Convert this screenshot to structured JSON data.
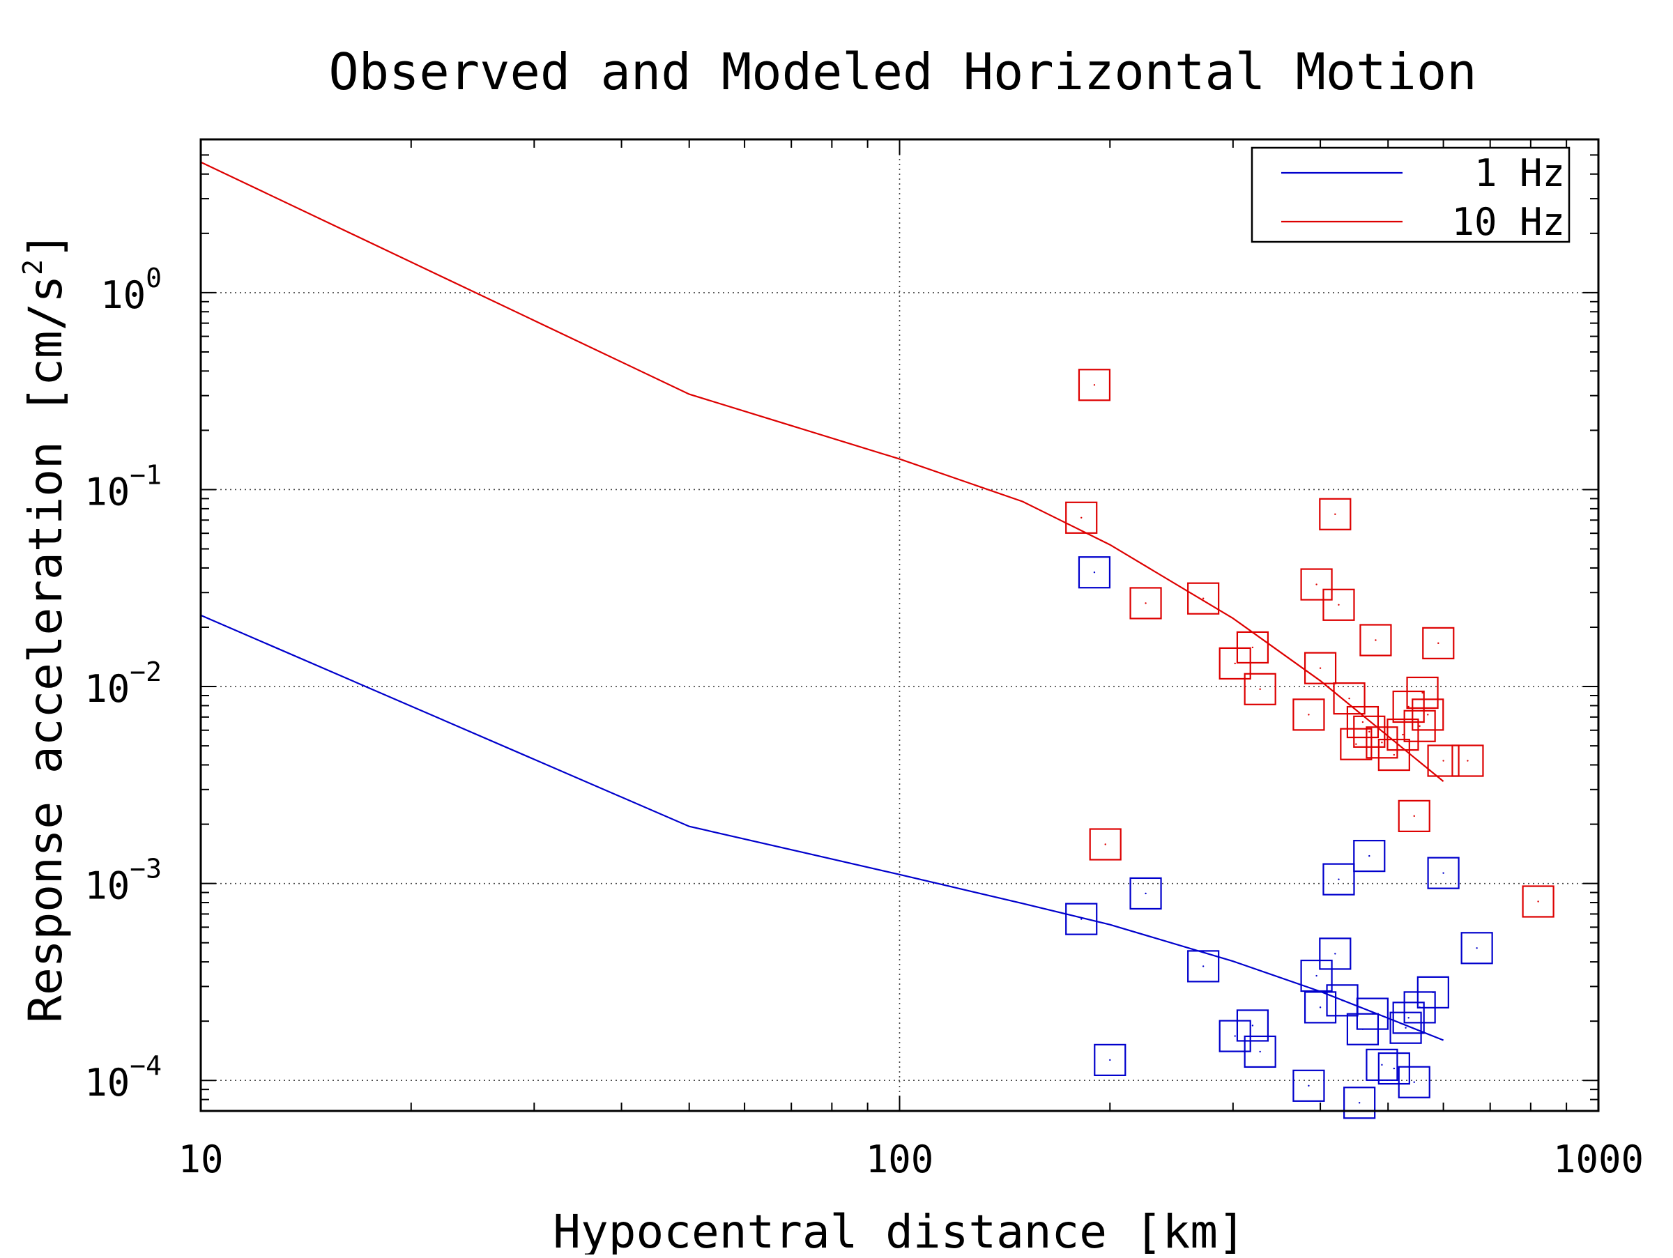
{
  "chart_data": {
    "type": "scatter",
    "title": "Observed and Modeled Horizontal Motion",
    "xlabel": "Hypocentral distance [km]",
    "ylabel": "Response acceleration [cm/s",
    "ylabel_superscript": "2",
    "ylabel_suffix": "]",
    "x_scale": "log",
    "y_scale": "log",
    "xlim": [
      10,
      1000
    ],
    "ylim": [
      7e-05,
      6
    ],
    "x_ticks": [
      {
        "value": 10,
        "label": "10"
      },
      {
        "value": 100,
        "label": "100"
      },
      {
        "value": 1000,
        "label": "1000"
      }
    ],
    "y_ticks": [
      {
        "value": 1,
        "base": "10",
        "exp": "0"
      },
      {
        "value": 0.1,
        "base": "10",
        "exp": "−1"
      },
      {
        "value": 0.01,
        "base": "10",
        "exp": "−2"
      },
      {
        "value": 0.001,
        "base": "10",
        "exp": "−3"
      },
      {
        "value": 0.0001,
        "base": "10",
        "exp": "−4"
      }
    ],
    "grid": true,
    "legend_position": "top-right",
    "series": [
      {
        "name": "1 Hz",
        "kind": "line",
        "color": "#0000cc",
        "x": [
          10,
          50,
          100,
          150,
          200,
          300,
          400,
          500,
          600
        ],
        "y": [
          0.023,
          0.00195,
          0.00111,
          0.000792,
          0.000618,
          0.000403,
          0.000283,
          0.000207,
          0.00016
        ]
      },
      {
        "name": "10 Hz",
        "kind": "line",
        "color": "#dd0000",
        "x": [
          10,
          50,
          100,
          150,
          200,
          300,
          400,
          500,
          600
        ],
        "y": [
          4.6,
          0.305,
          0.143,
          0.087,
          0.0525,
          0.0222,
          0.0107,
          0.0056,
          0.0033
        ]
      },
      {
        "name": "",
        "kind": "markers",
        "marker": "square",
        "color": "#0000cc",
        "x": [
          182,
          190,
          200,
          225,
          272,
          302,
          320,
          328,
          385,
          395,
          400,
          420,
          425,
          430,
          455,
          460,
          470,
          475,
          490,
          510,
          530,
          535,
          545,
          555,
          580,
          600,
          670
        ],
        "y": [
          0.00066,
          0.038,
          0.000127,
          0.00089,
          0.00038,
          0.000168,
          0.00019,
          0.00014,
          9.4e-05,
          0.00034,
          0.000235,
          0.00044,
          0.00105,
          0.000255,
          7.7e-05,
          0.000182,
          0.00138,
          0.000218,
          0.00012,
          0.000115,
          0.000185,
          0.000208,
          9.8e-05,
          0.000235,
          0.00028,
          0.00113,
          0.00047
        ]
      },
      {
        "name": "",
        "kind": "markers",
        "marker": "square",
        "color": "#dd0000",
        "x": [
          182,
          190,
          197,
          225,
          272,
          302,
          320,
          328,
          385,
          395,
          400,
          420,
          425,
          440,
          450,
          460,
          470,
          480,
          490,
          510,
          525,
          535,
          545,
          555,
          560,
          570,
          590,
          600,
          650,
          820
        ],
        "y": [
          0.072,
          0.34,
          0.00158,
          0.0265,
          0.028,
          0.0131,
          0.0158,
          0.0097,
          0.0072,
          0.033,
          0.0124,
          0.075,
          0.026,
          0.0087,
          0.0051,
          0.0066,
          0.0059,
          0.0172,
          0.0052,
          0.0045,
          0.0057,
          0.0079,
          0.0022,
          0.0063,
          0.0093,
          0.0072,
          0.0166,
          0.0042,
          0.0042,
          0.00081
        ]
      }
    ]
  }
}
